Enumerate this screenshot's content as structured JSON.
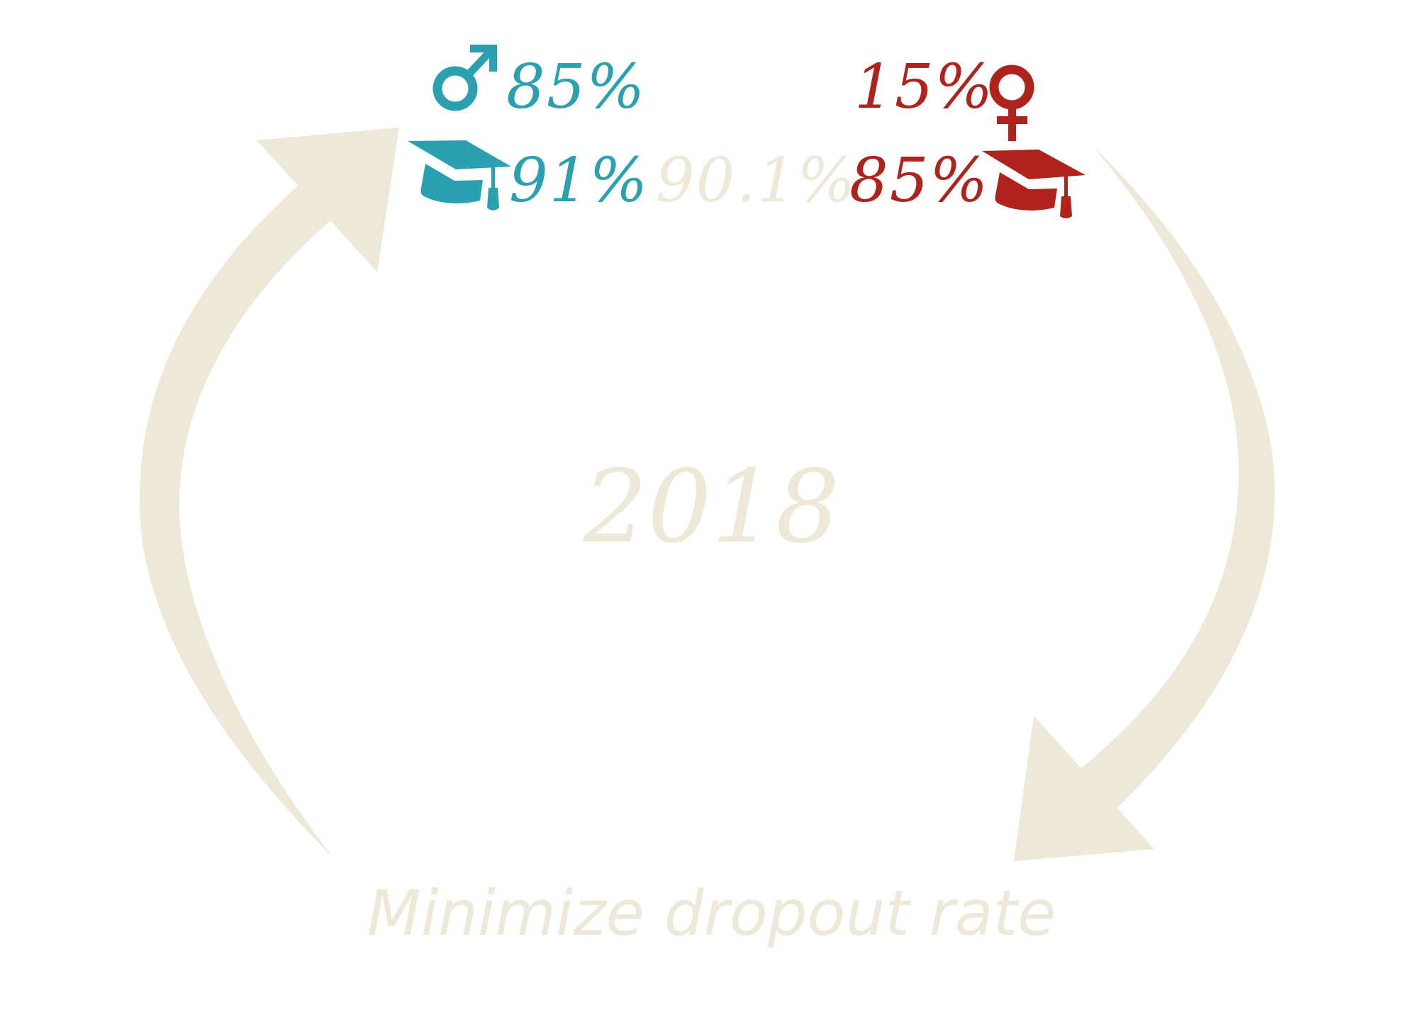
{
  "colors": {
    "male": "#2aa0b0",
    "female": "#b0231c",
    "neutral": "#ede8d8"
  },
  "icons": {
    "male_symbol": "male-symbol-icon",
    "female_symbol": "female-symbol-icon",
    "male_graduation": "graduation-cap-icon",
    "female_graduation": "graduation-cap-icon",
    "cycle_arrows": "circular-arrows-icon"
  },
  "male": {
    "share": "85%",
    "graduation": "91%"
  },
  "female": {
    "share": "15%",
    "graduation": "85%"
  },
  "overall_graduation": "90.1%",
  "year": "2018",
  "caption": "Minimize dropout rate"
}
